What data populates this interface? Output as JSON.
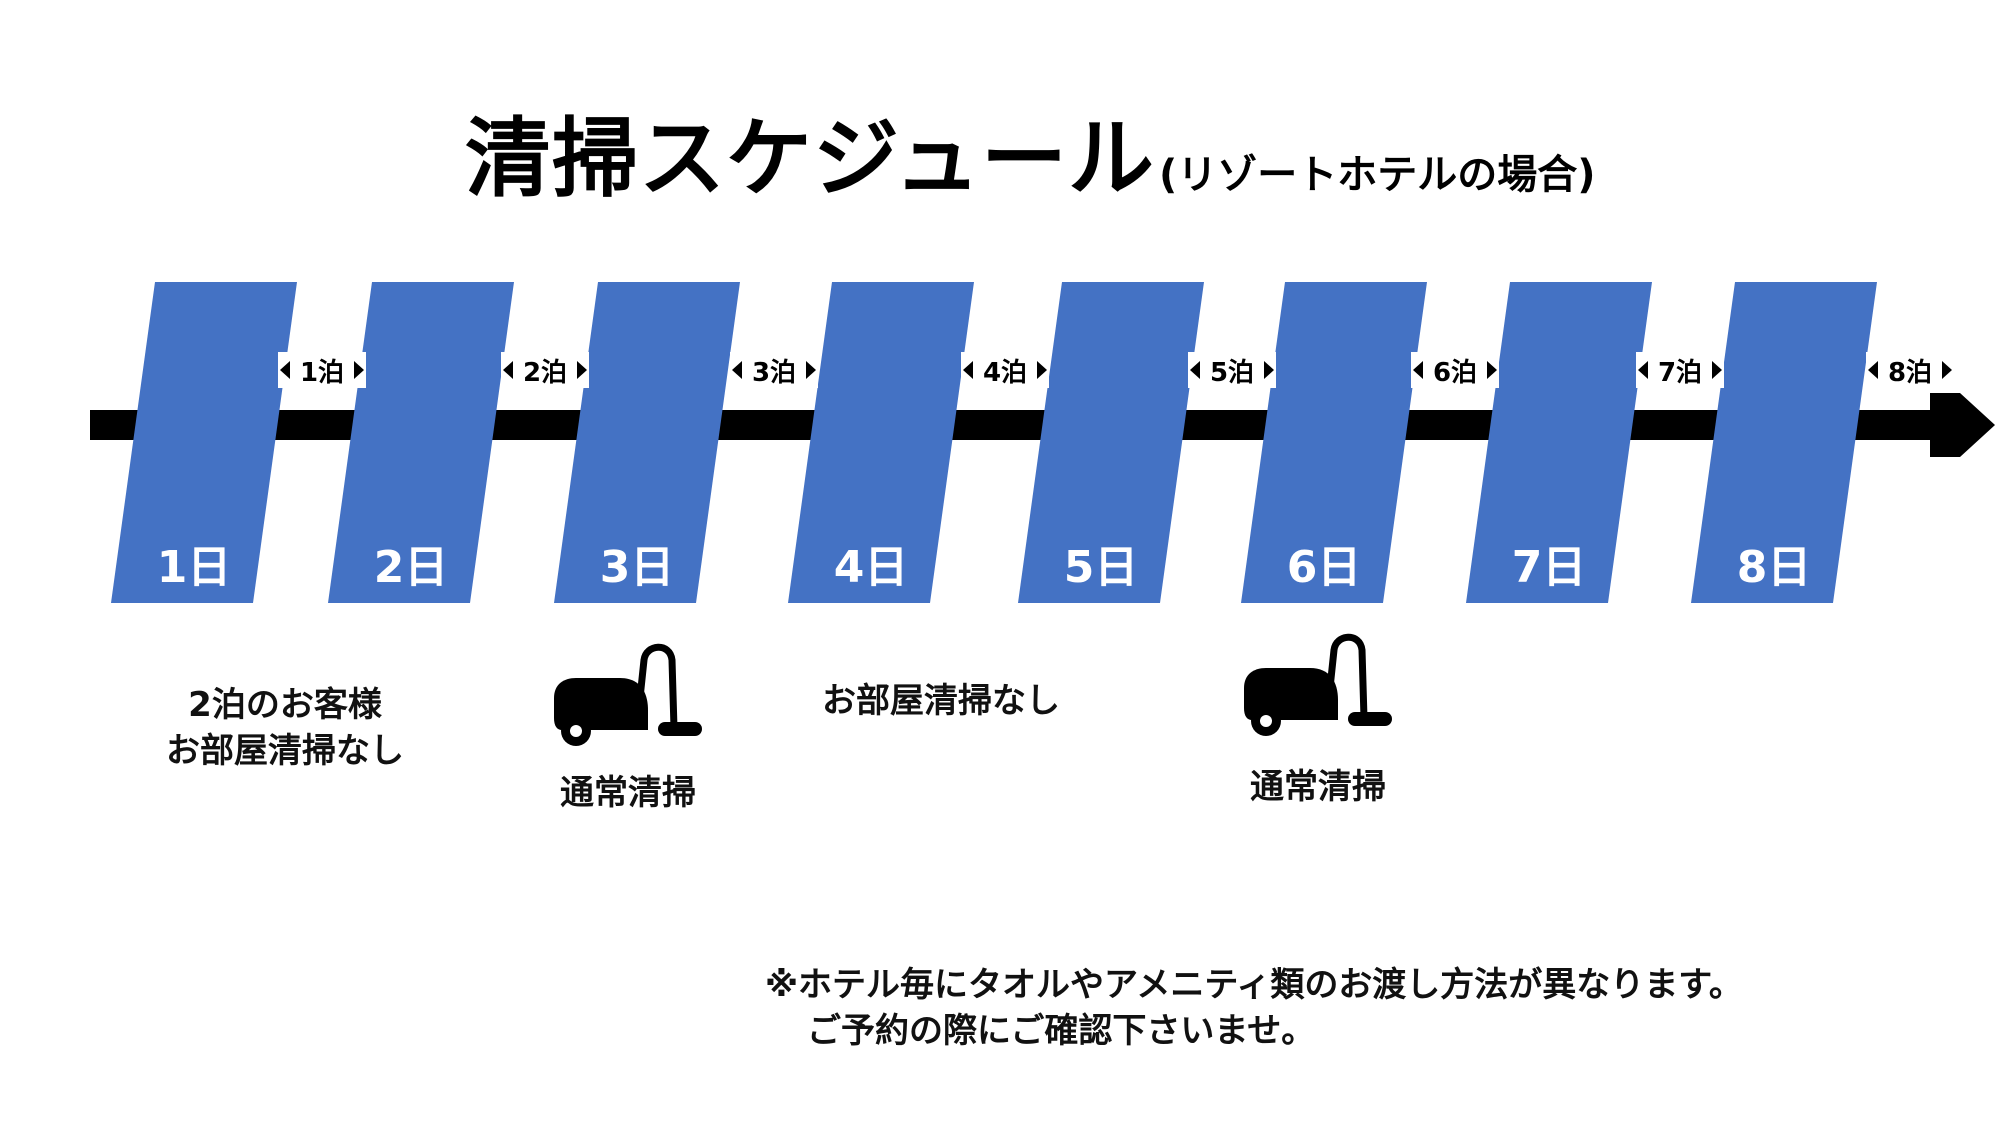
{
  "title": {
    "main": "清掃スケジュール",
    "sub": "(リゾートホテルの場合)"
  },
  "days": [
    "1日",
    "2日",
    "3日",
    "4日",
    "5日",
    "6日",
    "7日",
    "8日"
  ],
  "nights": [
    "1泊",
    "2泊",
    "3泊",
    "4泊",
    "5泊",
    "6泊",
    "7泊",
    "8泊"
  ],
  "captions": {
    "two_night": {
      "line1": "2泊のお客様",
      "line2": "お部屋清掃なし"
    },
    "day3_clean": "通常清掃",
    "no_clean": "お部屋清掃なし",
    "day6_clean": "通常清掃"
  },
  "note": {
    "line1": "※ホテル毎にタオルやアメニティ類のお渡し方法が異なります。",
    "line2": "ご予約の際にご確認下さいませ。"
  },
  "icons": {
    "vacuum": "vacuum-cleaner-icon"
  },
  "colors": {
    "day_block": "#4472c4",
    "arrow": "#000000",
    "text": "#111111"
  }
}
